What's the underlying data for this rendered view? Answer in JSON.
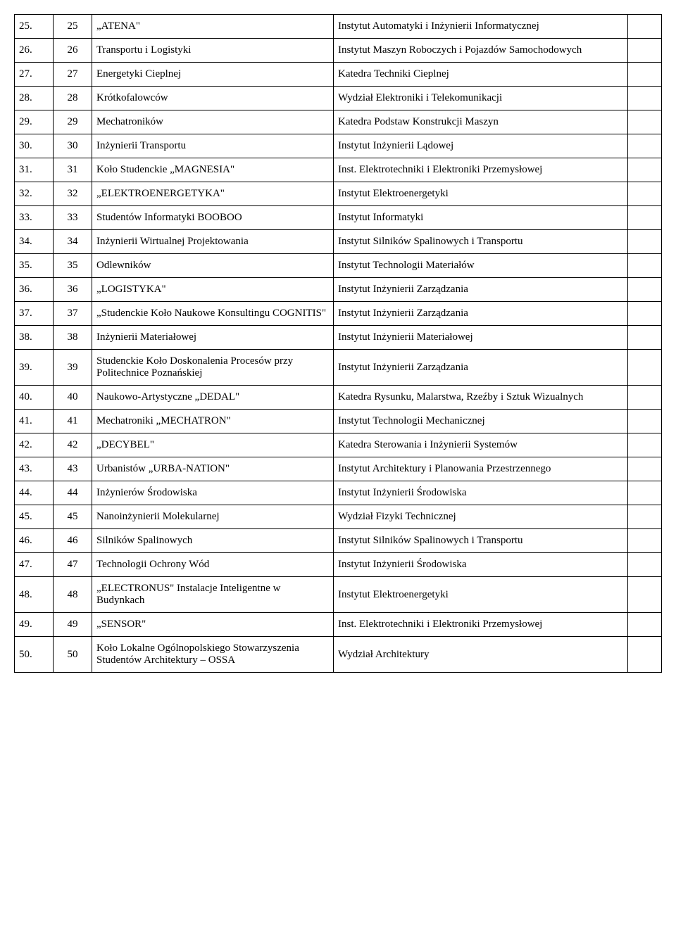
{
  "rows": [
    {
      "c1": "25.",
      "c2": "25",
      "name": "„ATENA\"",
      "inst": "Instytut Automatyki i Inżynierii Informatycznej"
    },
    {
      "c1": "26.",
      "c2": "26",
      "name": "Transportu i Logistyki",
      "inst": "Instytut Maszyn Roboczych i Pojazdów Samochodowych"
    },
    {
      "c1": "27.",
      "c2": "27",
      "name": "Energetyki Cieplnej",
      "inst": "Katedra Techniki Cieplnej"
    },
    {
      "c1": "28.",
      "c2": "28",
      "name": "Krótkofalowców",
      "inst": "Wydział Elektroniki i Telekomunikacji"
    },
    {
      "c1": "29.",
      "c2": "29",
      "name": "Mechatroników",
      "inst": "Katedra Podstaw Konstrukcji Maszyn"
    },
    {
      "c1": "30.",
      "c2": "30",
      "name": "Inżynierii Transportu",
      "inst": "Instytut Inżynierii Lądowej"
    },
    {
      "c1": "31.",
      "c2": "31",
      "name": "Koło Studenckie „MAGNESIA\"",
      "inst": "Inst. Elektrotechniki i Elektroniki Przemysłowej"
    },
    {
      "c1": "32.",
      "c2": "32",
      "name": "„ELEKTROENERGETYKA\"",
      "inst": "Instytut Elektroenergetyki"
    },
    {
      "c1": "33.",
      "c2": "33",
      "name": "Studentów Informatyki BOOBOO",
      "inst": "Instytut Informatyki"
    },
    {
      "c1": "34.",
      "c2": "34",
      "name": "Inżynierii Wirtualnej Projektowania",
      "inst": "Instytut Silników Spalinowych i Transportu"
    },
    {
      "c1": "35.",
      "c2": "35",
      "name": "Odlewników",
      "inst": "Instytut Technologii Materiałów"
    },
    {
      "c1": "36.",
      "c2": "36",
      "name": "„LOGISTYKA\"",
      "inst": "Instytut Inżynierii Zarządzania"
    },
    {
      "c1": "37.",
      "c2": "37",
      "name": "„Studenckie Koło Naukowe Konsultingu COGNITIS\"",
      "inst": "Instytut Inżynierii Zarządzania"
    },
    {
      "c1": "38.",
      "c2": "38",
      "name": "Inżynierii Materiałowej",
      "inst": "Instytut Inżynierii Materiałowej"
    },
    {
      "c1": "39.",
      "c2": "39",
      "name": "Studenckie Koło Doskonalenia Procesów przy Politechnice Poznańskiej",
      "inst": "Instytut Inżynierii Zarządzania"
    },
    {
      "c1": "40.",
      "c2": "40",
      "name": "Naukowo-Artystyczne „DEDAL\"",
      "inst": "Katedra Rysunku, Malarstwa, Rzeźby i Sztuk Wizualnych"
    },
    {
      "c1": "41.",
      "c2": "41",
      "name": "Mechatroniki „MECHATRON\"",
      "inst": "Instytut Technologii Mechanicznej"
    },
    {
      "c1": "42.",
      "c2": "42",
      "name": "„DECYBEL\"",
      "inst": "Katedra Sterowania i Inżynierii Systemów"
    },
    {
      "c1": "43.",
      "c2": "43",
      "name": "Urbanistów „URBA-NATION\"",
      "inst": "Instytut Architektury i Planowania Przestrzennego"
    },
    {
      "c1": "44.",
      "c2": "44",
      "name": "Inżynierów Środowiska",
      "inst": "Instytut Inżynierii Środowiska"
    },
    {
      "c1": "45.",
      "c2": "45",
      "name": "Nanoinżynierii Molekularnej",
      "inst": "Wydział Fizyki Technicznej"
    },
    {
      "c1": "46.",
      "c2": "46",
      "name": "Silników Spalinowych",
      "inst": "Instytut Silników Spalinowych i Transportu"
    },
    {
      "c1": "47.",
      "c2": "47",
      "name": "Technologii Ochrony Wód",
      "inst": "Instytut Inżynierii Środowiska"
    },
    {
      "c1": "48.",
      "c2": "48",
      "name": "„ELECTRONUS\" Instalacje Inteligentne w Budynkach",
      "inst": "Instytut Elektroenergetyki"
    },
    {
      "c1": "49.",
      "c2": "49",
      "name": "„SENSOR\"",
      "inst": "Inst. Elektrotechniki i Elektroniki Przemysłowej"
    },
    {
      "c1": "50.",
      "c2": "50",
      "name": "Koło Lokalne Ogólnopolskiego Stowarzyszenia Studentów Architektury – OSSA",
      "inst": "Wydział Architektury"
    }
  ]
}
